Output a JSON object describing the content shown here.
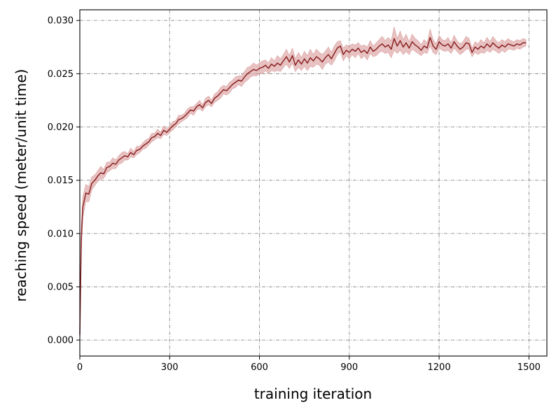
{
  "chart_data": {
    "type": "line",
    "title": "",
    "xlabel": "training iteration",
    "ylabel": "reaching speed (meter/unit time)",
    "xlim": [
      0,
      1560
    ],
    "ylim": [
      -0.0015,
      0.031
    ],
    "xticks": [
      0,
      300,
      600,
      900,
      1200,
      1500
    ],
    "xtick_labels": [
      "0",
      "300",
      "600",
      "900",
      "1200",
      "1500"
    ],
    "yticks": [
      0.0,
      0.005,
      0.01,
      0.015,
      0.02,
      0.025,
      0.03
    ],
    "ytick_labels": [
      "0.000",
      "0.005",
      "0.010",
      "0.015",
      "0.020",
      "0.025",
      "0.030"
    ],
    "grid": true,
    "legend": "none",
    "colors": {
      "line": "#8b2323",
      "band": "#d99a9a"
    },
    "series": [
      {
        "x": [
          0,
          5,
          10,
          20,
          30,
          40,
          50,
          60,
          70,
          80,
          90,
          100,
          110,
          120,
          130,
          140,
          150,
          160,
          170,
          180,
          190,
          200,
          210,
          220,
          230,
          240,
          250,
          260,
          270,
          280,
          290,
          300,
          310,
          320,
          330,
          340,
          350,
          360,
          370,
          380,
          390,
          400,
          410,
          420,
          430,
          440,
          450,
          460,
          470,
          480,
          490,
          500,
          510,
          520,
          530,
          540,
          550,
          560,
          570,
          580,
          590,
          600,
          610,
          620,
          630,
          640,
          650,
          660,
          670,
          680,
          690,
          700,
          710,
          720,
          730,
          740,
          750,
          760,
          770,
          780,
          790,
          800,
          810,
          820,
          830,
          840,
          850,
          860,
          870,
          880,
          890,
          900,
          910,
          920,
          930,
          940,
          950,
          960,
          970,
          980,
          990,
          1000,
          1010,
          1020,
          1030,
          1040,
          1050,
          1060,
          1070,
          1080,
          1090,
          1100,
          1110,
          1120,
          1130,
          1140,
          1150,
          1160,
          1170,
          1180,
          1190,
          1200,
          1210,
          1220,
          1230,
          1240,
          1250,
          1260,
          1270,
          1280,
          1290,
          1300,
          1310,
          1320,
          1330,
          1340,
          1350,
          1360,
          1370,
          1380,
          1390,
          1400,
          1410,
          1420,
          1430,
          1440,
          1450,
          1460,
          1470,
          1480,
          1490
        ],
        "y": [
          0.0005,
          0.0095,
          0.0125,
          0.0138,
          0.0137,
          0.0147,
          0.015,
          0.0154,
          0.0157,
          0.0156,
          0.0162,
          0.0163,
          0.0166,
          0.0165,
          0.0169,
          0.0171,
          0.0173,
          0.0172,
          0.0176,
          0.0174,
          0.0178,
          0.0179,
          0.0182,
          0.0184,
          0.0186,
          0.019,
          0.0191,
          0.0194,
          0.0192,
          0.0197,
          0.0195,
          0.0198,
          0.0201,
          0.0203,
          0.0207,
          0.0208,
          0.021,
          0.0213,
          0.0216,
          0.0215,
          0.0219,
          0.0221,
          0.0218,
          0.0223,
          0.0225,
          0.0222,
          0.0227,
          0.0229,
          0.0232,
          0.0235,
          0.0234,
          0.0237,
          0.024,
          0.0242,
          0.0244,
          0.0243,
          0.0247,
          0.025,
          0.0252,
          0.0254,
          0.0253,
          0.0255,
          0.0256,
          0.0258,
          0.0255,
          0.0259,
          0.0257,
          0.026,
          0.0258,
          0.0262,
          0.0266,
          0.0261,
          0.0267,
          0.0258,
          0.0263,
          0.0259,
          0.0264,
          0.026,
          0.0265,
          0.0262,
          0.0266,
          0.0264,
          0.0261,
          0.0265,
          0.0268,
          0.0264,
          0.0269,
          0.0274,
          0.0276,
          0.0268,
          0.0272,
          0.027,
          0.0273,
          0.0271,
          0.0274,
          0.027,
          0.0272,
          0.0269,
          0.0275,
          0.0271,
          0.0273,
          0.0276,
          0.0278,
          0.0275,
          0.0277,
          0.0273,
          0.0283,
          0.0276,
          0.0281,
          0.0275,
          0.0279,
          0.0274,
          0.028,
          0.0277,
          0.0275,
          0.0272,
          0.0276,
          0.0274,
          0.0284,
          0.0276,
          0.0273,
          0.028,
          0.0277,
          0.0276,
          0.0278,
          0.0274,
          0.028,
          0.0276,
          0.0273,
          0.0275,
          0.0279,
          0.0278,
          0.027,
          0.0275,
          0.0273,
          0.0276,
          0.0274,
          0.0278,
          0.0275,
          0.0279,
          0.0276,
          0.0274,
          0.0277,
          0.0275,
          0.0278,
          0.0277,
          0.0276,
          0.0278,
          0.0277,
          0.0279,
          0.0279
        ],
        "band": [
          0.0003,
          0.0012,
          0.001,
          0.0008,
          0.0007,
          0.0006,
          0.0005,
          0.0005,
          0.0006,
          0.0004,
          0.0005,
          0.0004,
          0.0005,
          0.0004,
          0.0004,
          0.0005,
          0.0004,
          0.0003,
          0.0004,
          0.0003,
          0.0004,
          0.0003,
          0.0003,
          0.0004,
          0.0003,
          0.0004,
          0.0003,
          0.0004,
          0.0003,
          0.0004,
          0.0003,
          0.0003,
          0.0004,
          0.0003,
          0.0004,
          0.0003,
          0.0003,
          0.0004,
          0.0003,
          0.0004,
          0.0003,
          0.0004,
          0.0003,
          0.0004,
          0.0004,
          0.0003,
          0.0004,
          0.0004,
          0.0005,
          0.0004,
          0.0004,
          0.0005,
          0.0004,
          0.0005,
          0.0004,
          0.0005,
          0.0005,
          0.0006,
          0.0005,
          0.0006,
          0.0005,
          0.0005,
          0.0006,
          0.0005,
          0.0005,
          0.0006,
          0.0005,
          0.0007,
          0.0006,
          0.0006,
          0.0007,
          0.0006,
          0.0007,
          0.0006,
          0.0007,
          0.0006,
          0.0007,
          0.0007,
          0.0008,
          0.0006,
          0.0007,
          0.0006,
          0.0007,
          0.0006,
          0.0007,
          0.0006,
          0.0007,
          0.0006,
          0.0005,
          0.0006,
          0.0005,
          0.0006,
          0.0005,
          0.0006,
          0.0005,
          0.0006,
          0.0005,
          0.0006,
          0.0006,
          0.0005,
          0.0006,
          0.0006,
          0.0007,
          0.0006,
          0.0007,
          0.0008,
          0.0011,
          0.0007,
          0.0009,
          0.0007,
          0.0008,
          0.0006,
          0.0007,
          0.0006,
          0.0006,
          0.0005,
          0.0006,
          0.0005,
          0.0008,
          0.0006,
          0.0005,
          0.0006,
          0.0005,
          0.0005,
          0.0006,
          0.0005,
          0.0006,
          0.0005,
          0.0005,
          0.0005,
          0.0006,
          0.0005,
          0.0004,
          0.0005,
          0.0005,
          0.0006,
          0.0005,
          0.0006,
          0.0005,
          0.0006,
          0.0005,
          0.0005,
          0.0005,
          0.0005,
          0.0005,
          0.0004,
          0.0004,
          0.0004,
          0.0004,
          0.0004,
          0.0003
        ]
      }
    ]
  }
}
